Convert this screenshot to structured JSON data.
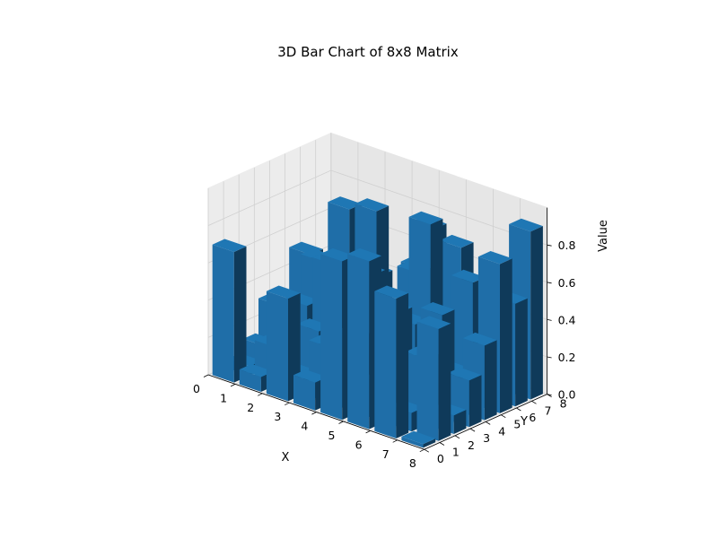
{
  "chart_data": {
    "type": "bar3d",
    "title": "3D Bar Chart of 8x8 Matrix",
    "xlabel": "X",
    "ylabel": "Y",
    "zlabel": "Value",
    "x_ticks": [
      "0",
      "1",
      "2",
      "3",
      "4",
      "5",
      "6",
      "7",
      "8"
    ],
    "y_ticks": [
      "0",
      "1",
      "2",
      "3",
      "4",
      "5",
      "6",
      "7",
      "8"
    ],
    "z_ticks": [
      "0.0",
      "0.2",
      "0.4",
      "0.6",
      "0.8"
    ],
    "xlim": [
      0,
      8
    ],
    "ylim": [
      0,
      8
    ],
    "zlim": [
      0,
      1.0
    ],
    "bar_color": "#1f77b4",
    "values": [
      [
        0.7,
        0.05,
        0.12,
        0.3,
        0.15,
        0.5,
        0.2,
        0.35
      ],
      [
        0.08,
        0.2,
        0.1,
        0.35,
        0.55,
        0.25,
        0.4,
        0.3
      ],
      [
        0.55,
        0.1,
        0.3,
        0.62,
        0.88,
        0.15,
        0.45,
        0.2
      ],
      [
        0.15,
        0.3,
        0.05,
        0.2,
        0.92,
        0.35,
        0.1,
        0.5
      ],
      [
        0.85,
        0.4,
        0.7,
        0.5,
        0.3,
        0.6,
        0.8,
        0.25
      ],
      [
        0.9,
        0.2,
        0.55,
        0.45,
        0.95,
        0.15,
        0.75,
        0.4
      ],
      [
        0.75,
        0.1,
        0.35,
        0.55,
        0.2,
        0.65,
        0.3,
        0.6
      ],
      [
        0.02,
        0.6,
        0.1,
        0.25,
        0.4,
        0.8,
        0.55,
        0.9
      ]
    ]
  }
}
